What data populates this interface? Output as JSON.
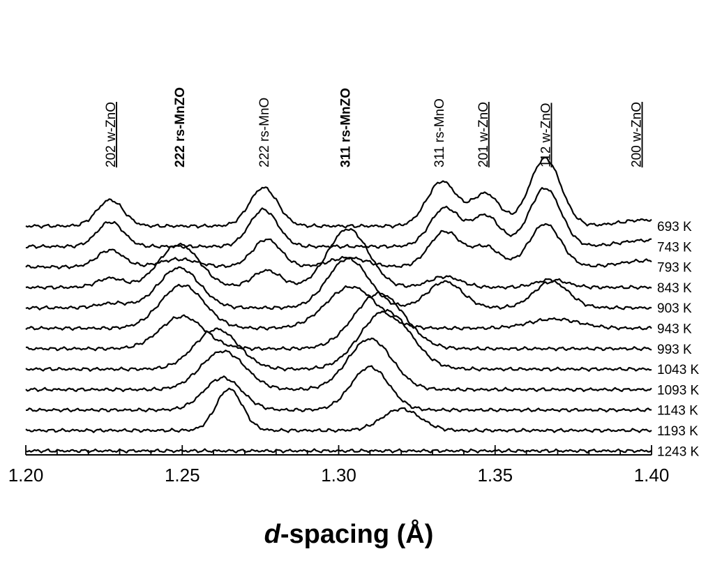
{
  "chart_data": {
    "type": "line",
    "title": "",
    "xlabel": {
      "italic": "d",
      "rest": "-spacing (Å)"
    },
    "ylabel": "",
    "xlim": [
      1.2,
      1.4
    ],
    "x_tick_values": [
      1.2,
      1.25,
      1.3,
      1.35,
      1.4
    ],
    "x_tick_labels": [
      "1.20",
      "1.25",
      "1.30",
      "1.35",
      "1.40"
    ],
    "x_minor_step": 0.01,
    "grid": false,
    "legend": "none",
    "peak_labels": [
      {
        "text": "202 w-ZnO",
        "d": 1.227,
        "underline": true,
        "bold": false
      },
      {
        "text": "222 rs-MnZO",
        "d": 1.249,
        "underline": false,
        "bold": true
      },
      {
        "text": "222 rs-MnO",
        "d": 1.276,
        "underline": false,
        "bold": false
      },
      {
        "text": "311 rs-MnZO",
        "d": 1.302,
        "underline": false,
        "bold": true
      },
      {
        "text": "311 rs-MnO",
        "d": 1.332,
        "underline": false,
        "bold": false
      },
      {
        "text": "201 w-ZnO",
        "d": 1.346,
        "underline": true,
        "bold": false
      },
      {
        "text": "112 w-ZnO",
        "d": 1.366,
        "underline": true,
        "bold": false
      },
      {
        "text": "200 w-ZnO",
        "d": 1.395,
        "underline": true,
        "bold": false
      }
    ],
    "series": [
      {
        "name": "693 K",
        "peaks": [
          [
            1.227,
            1.7,
            0.0042
          ],
          [
            1.276,
            2.5,
            0.0045
          ],
          [
            1.333,
            2.9,
            0.0048
          ],
          [
            1.347,
            2.1,
            0.0045
          ],
          [
            1.366,
            4.4,
            0.005
          ],
          [
            1.398,
            0.4,
            0.008
          ]
        ]
      },
      {
        "name": "743 K",
        "peaks": [
          [
            1.227,
            1.6,
            0.0042
          ],
          [
            1.276,
            2.4,
            0.0045
          ],
          [
            1.334,
            2.5,
            0.0048
          ],
          [
            1.347,
            2.0,
            0.0045
          ],
          [
            1.366,
            3.8,
            0.005
          ],
          [
            1.398,
            0.4,
            0.008
          ]
        ]
      },
      {
        "name": "793 K",
        "peaks": [
          [
            1.227,
            1.1,
            0.0042
          ],
          [
            1.249,
            0.5,
            0.006
          ],
          [
            1.277,
            1.8,
            0.0045
          ],
          [
            1.303,
            0.6,
            0.006
          ],
          [
            1.334,
            2.3,
            0.005
          ],
          [
            1.347,
            1.3,
            0.0045
          ],
          [
            1.366,
            2.8,
            0.005
          ],
          [
            1.398,
            0.4,
            0.008
          ]
        ]
      },
      {
        "name": "843 K",
        "peaks": [
          [
            1.227,
            0.6,
            0.0042
          ],
          [
            1.249,
            2.8,
            0.0065
          ],
          [
            1.277,
            1.1,
            0.0045
          ],
          [
            1.303,
            3.8,
            0.0065
          ],
          [
            1.334,
            0.7,
            0.005
          ],
          [
            1.368,
            0.5,
            0.005
          ]
        ]
      },
      {
        "name": "903 K",
        "peaks": [
          [
            1.228,
            0.3,
            0.005
          ],
          [
            1.249,
            2.6,
            0.0065
          ],
          [
            1.303,
            3.2,
            0.0065
          ],
          [
            1.334,
            1.7,
            0.0055
          ],
          [
            1.368,
            1.7,
            0.0055
          ]
        ]
      },
      {
        "name": "943 K",
        "peaks": [
          [
            1.25,
            2.8,
            0.007
          ],
          [
            1.304,
            2.7,
            0.008
          ],
          [
            1.369,
            0.6,
            0.008
          ]
        ]
      },
      {
        "name": "993 K",
        "peaks": [
          [
            1.25,
            2.1,
            0.007
          ],
          [
            1.313,
            3.6,
            0.008
          ]
        ]
      },
      {
        "name": "1043 K",
        "peaks": [
          [
            1.261,
            2.6,
            0.007
          ],
          [
            1.315,
            3.8,
            0.008
          ]
        ]
      },
      {
        "name": "1093 K",
        "peaks": [
          [
            1.263,
            2.5,
            0.007
          ],
          [
            1.31,
            3.3,
            0.007
          ]
        ]
      },
      {
        "name": "1143 K",
        "peaks": [
          [
            1.263,
            2.1,
            0.006
          ],
          [
            1.31,
            2.8,
            0.006
          ]
        ]
      },
      {
        "name": "1193 K",
        "peaks": [
          [
            1.265,
            2.7,
            0.0042
          ],
          [
            1.32,
            1.4,
            0.006
          ]
        ]
      },
      {
        "name": "1243 K",
        "peaks": []
      }
    ]
  }
}
